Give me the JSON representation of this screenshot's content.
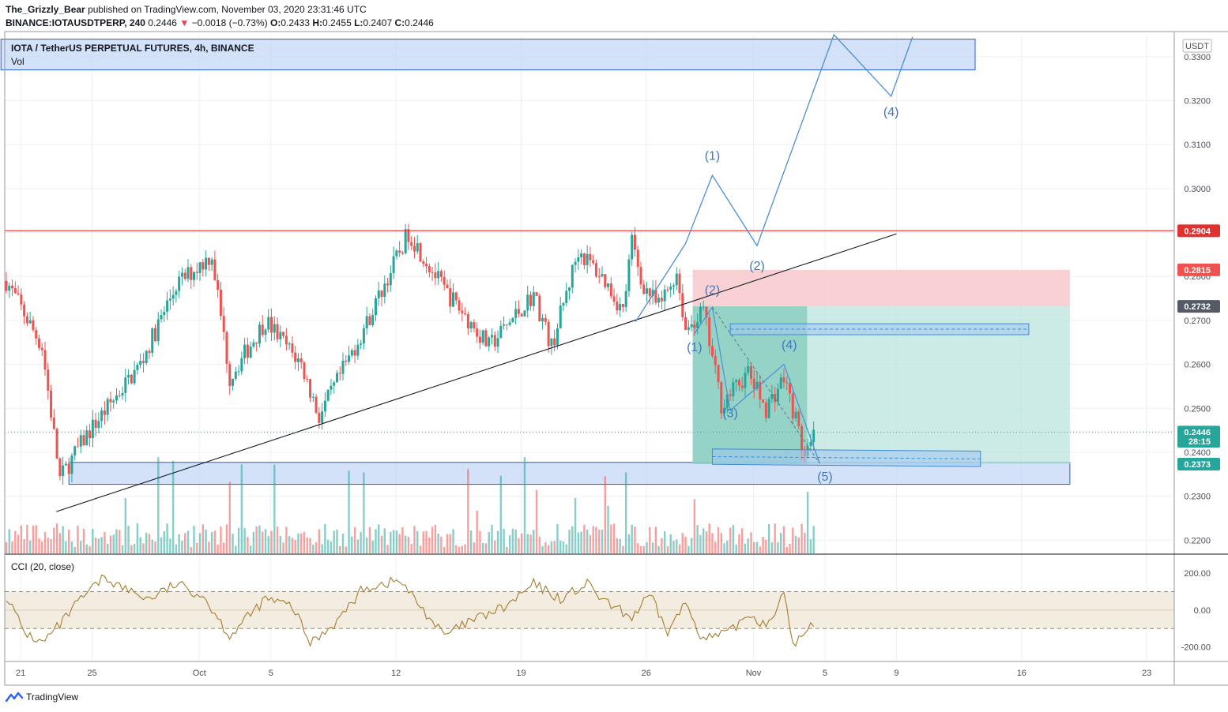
{
  "header": {
    "author": "The_Grizzly_Bear",
    "published_text": "published on TradingView.com, November 03, 2020 23:31:46 UTC",
    "symbol": "BINANCE:IOTAUSDTPERP, 240",
    "last_price": "0.2446",
    "change": "−0.0018 (−0.73%)",
    "o_label": "O:",
    "o_value": "0.2433",
    "h_label": "H:",
    "h_value": "0.2455",
    "l_label": "L:",
    "l_value": "0.2407",
    "c_label": "C:",
    "c_value": "0.2446"
  },
  "legend": {
    "title": "IOTA / TetherUS PERPETUAL FUTURES, 4h, BINANCE",
    "vol_label": "Vol"
  },
  "footer": {
    "brand": "TradingView"
  },
  "colors": {
    "up": "#26a69a",
    "down": "#ef5350",
    "line": "#4a8fd4",
    "resistance": "#e03131",
    "cci": "#a67c2e",
    "zone": "#bcd2f5",
    "stop": "#f8c9cc",
    "target": "#b7e3dc"
  },
  "chart_data": [
    {
      "type": "candlestick",
      "title": "IOTA / TetherUS PERPETUAL FUTURES, 4h, BINANCE",
      "currency": "USDT",
      "ylim": [
        0.217,
        0.335
      ],
      "y_ticks": [
        "0.3300",
        "0.3200",
        "0.3100",
        "0.3000",
        "0.2900",
        "0.2800",
        "0.2700",
        "0.2600",
        "0.2500",
        "0.2400",
        "0.2300",
        "0.2200"
      ],
      "x_range_days": [
        0,
        64
      ],
      "x_ticks": [
        {
          "label": "21",
          "day": 0.8
        },
        {
          "label": "25",
          "day": 4.8
        },
        {
          "label": "Oct",
          "day": 10.8
        },
        {
          "label": "5",
          "day": 14.8
        },
        {
          "label": "12",
          "day": 21.8
        },
        {
          "label": "19",
          "day": 28.8
        },
        {
          "label": "26",
          "day": 35.8
        },
        {
          "label": "Nov",
          "day": 41.8
        },
        {
          "label": "5",
          "day": 45.8
        },
        {
          "label": "9",
          "day": 49.8
        },
        {
          "label": "16",
          "day": 56.8
        },
        {
          "label": "23",
          "day": 63.8
        }
      ],
      "price_badges": [
        {
          "label": "0.2904",
          "value": 0.2904,
          "kind": "resistance"
        },
        {
          "label": "0.2815",
          "value": 0.2815,
          "kind": "stop"
        },
        {
          "label": "0.2732",
          "value": 0.2732,
          "kind": "entry"
        },
        {
          "label": "0.2446",
          "value": 0.2446,
          "kind": "last"
        },
        {
          "label": "28:15",
          "value": 0.2425,
          "kind": "timer"
        },
        {
          "label": "0.2373",
          "value": 0.2373,
          "kind": "target"
        }
      ],
      "anchors": [
        {
          "day": 0,
          "price": 0.279
        },
        {
          "day": 2.0,
          "price": 0.264
        },
        {
          "day": 3.0,
          "price": 0.234
        },
        {
          "day": 4.5,
          "price": 0.244
        },
        {
          "day": 7.5,
          "price": 0.26
        },
        {
          "day": 9.5,
          "price": 0.278
        },
        {
          "day": 11.5,
          "price": 0.285
        },
        {
          "day": 12.5,
          "price": 0.257
        },
        {
          "day": 14.5,
          "price": 0.27
        },
        {
          "day": 16.5,
          "price": 0.26
        },
        {
          "day": 17.5,
          "price": 0.248
        },
        {
          "day": 20.0,
          "price": 0.268
        },
        {
          "day": 22.5,
          "price": 0.29
        },
        {
          "day": 24.5,
          "price": 0.277
        },
        {
          "day": 25.5,
          "price": 0.272
        },
        {
          "day": 27.0,
          "price": 0.264
        },
        {
          "day": 29.5,
          "price": 0.276
        },
        {
          "day": 30.5,
          "price": 0.264
        },
        {
          "day": 32.0,
          "price": 0.286
        },
        {
          "day": 33.5,
          "price": 0.279
        },
        {
          "day": 34.5,
          "price": 0.272
        },
        {
          "day": 35.0,
          "price": 0.288
        },
        {
          "day": 35.5,
          "price": 0.279
        },
        {
          "day": 36.5,
          "price": 0.273
        },
        {
          "day": 37.5,
          "price": 0.281
        },
        {
          "day": 38.0,
          "price": 0.268
        },
        {
          "day": 39.0,
          "price": 0.272
        },
        {
          "day": 40.0,
          "price": 0.251
        },
        {
          "day": 41.5,
          "price": 0.258
        },
        {
          "day": 42.5,
          "price": 0.25
        },
        {
          "day": 43.5,
          "price": 0.257
        },
        {
          "day": 44.2,
          "price": 0.247
        },
        {
          "day": 44.7,
          "price": 0.238
        },
        {
          "day": 45.3,
          "price": 0.2446
        }
      ],
      "volume_base": 0.217,
      "zones": [
        {
          "name": "top-resistance-zone",
          "day_from": -0.3,
          "day_to": 54.2,
          "price_from": 0.327,
          "price_to": 0.334
        },
        {
          "name": "support-zone",
          "day_from": 3.5,
          "day_to": 59.5,
          "price_from": 0.2327,
          "price_to": 0.2377
        },
        {
          "name": "stop-zone",
          "day_from": 38.4,
          "day_to": 59.5,
          "price_from": 0.2732,
          "price_to": 0.2815
        },
        {
          "name": "target-zone",
          "day_from": 38.4,
          "day_to": 59.5,
          "price_from": 0.2373,
          "price_to": 0.2732
        }
      ],
      "resistance_line": {
        "price": 0.2904
      },
      "trendline": {
        "from": {
          "day": 2.8,
          "price": 0.2265
        },
        "to": {
          "day": 49.8,
          "price": 0.2897
        }
      },
      "forecast_path": [
        {
          "day": 35.2,
          "price": 0.2697
        },
        {
          "day": 38.0,
          "price": 0.2875
        },
        {
          "day": 39.5,
          "price": 0.303
        },
        {
          "day": 42.0,
          "price": 0.287
        },
        {
          "day": 46.3,
          "price": 0.335
        },
        {
          "day": 49.5,
          "price": 0.321
        },
        {
          "day": 50.7,
          "price": 0.3345
        }
      ],
      "wave_path": [
        {
          "day": 38.5,
          "price": 0.267
        },
        {
          "day": 39.5,
          "price": 0.273
        },
        {
          "day": 40.5,
          "price": 0.2495
        },
        {
          "day": 43.5,
          "price": 0.26
        },
        {
          "day": 45.5,
          "price": 0.2375
        }
      ],
      "channels": [
        {
          "name": "upper-channel",
          "from": {
            "day": 40.5,
            "price": 0.268
          },
          "to": {
            "day": 57.2,
            "price": 0.268
          },
          "height": 0.0025
        },
        {
          "name": "lower-channel",
          "from": {
            "day": 39.5,
            "price": 0.239
          },
          "to": {
            "day": 54.5,
            "price": 0.2385
          },
          "height": 0.0035
        }
      ],
      "wave_labels": [
        {
          "text": "(1)",
          "day": 39.5,
          "price": 0.3065
        },
        {
          "text": "(2)",
          "day": 42.0,
          "price": 0.2815
        },
        {
          "text": "(4)",
          "day": 49.5,
          "price": 0.3165
        },
        {
          "text": "(2)",
          "day": 39.5,
          "price": 0.276
        },
        {
          "text": "(1)",
          "day": 38.5,
          "price": 0.263
        },
        {
          "text": "(4)",
          "day": 43.8,
          "price": 0.2635
        },
        {
          "text": "(3)",
          "day": 40.5,
          "price": 0.248
        },
        {
          "text": "(5)",
          "day": 45.8,
          "price": 0.2335
        }
      ]
    },
    {
      "type": "line",
      "title": "CCI (20, close)",
      "ylim": [
        -270,
        290
      ],
      "y_ticks": [
        "200.00",
        "0.00",
        "-200.00"
      ],
      "band": [
        -100,
        100
      ],
      "anchors": [
        {
          "day": 0,
          "value": 80
        },
        {
          "day": 1,
          "value": -120
        },
        {
          "day": 2,
          "value": -180
        },
        {
          "day": 3,
          "value": -80
        },
        {
          "day": 4,
          "value": 40
        },
        {
          "day": 5.5,
          "value": 180
        },
        {
          "day": 6.5,
          "value": 120
        },
        {
          "day": 8,
          "value": 60
        },
        {
          "day": 9.5,
          "value": 140
        },
        {
          "day": 11,
          "value": 80
        },
        {
          "day": 12.5,
          "value": -140
        },
        {
          "day": 13.5,
          "value": -40
        },
        {
          "day": 14.5,
          "value": 60
        },
        {
          "day": 16,
          "value": 20
        },
        {
          "day": 17,
          "value": -180
        },
        {
          "day": 18.5,
          "value": -60
        },
        {
          "day": 20,
          "value": 120
        },
        {
          "day": 22,
          "value": 160
        },
        {
          "day": 23,
          "value": 40
        },
        {
          "day": 24.5,
          "value": -140
        },
        {
          "day": 26,
          "value": -60
        },
        {
          "day": 28,
          "value": 20
        },
        {
          "day": 29.5,
          "value": 140
        },
        {
          "day": 31,
          "value": 60
        },
        {
          "day": 32.5,
          "value": 140
        },
        {
          "day": 33.5,
          "value": 40
        },
        {
          "day": 35,
          "value": -40
        },
        {
          "day": 36,
          "value": 80
        },
        {
          "day": 37,
          "value": -120
        },
        {
          "day": 38,
          "value": 40
        },
        {
          "day": 39,
          "value": -160
        },
        {
          "day": 40.5,
          "value": -120
        },
        {
          "day": 41.5,
          "value": -20
        },
        {
          "day": 42.5,
          "value": -80
        },
        {
          "day": 43.5,
          "value": 80
        },
        {
          "day": 44,
          "value": -180
        },
        {
          "day": 44.5,
          "value": -150
        },
        {
          "day": 45.3,
          "value": -55
        }
      ]
    }
  ]
}
